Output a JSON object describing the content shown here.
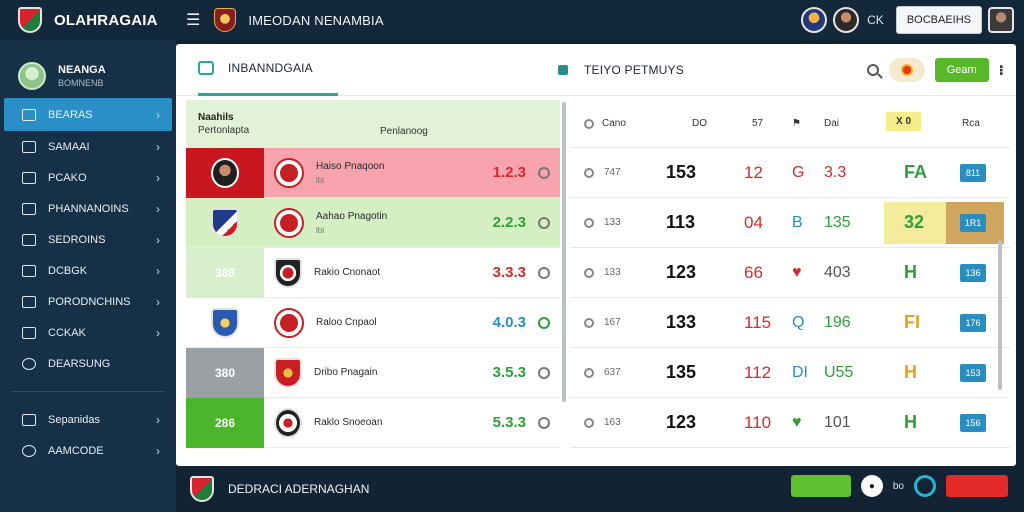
{
  "app": {
    "title": "OLAHRAGAIA",
    "header_title": "IMEODAN NENAMBIA",
    "header_ck": "CK",
    "header_button": "BOCBAEIHS"
  },
  "sidebar": {
    "profile_name": "NEANGA",
    "profile_sub": "BOMNENB",
    "items": [
      {
        "label": "BEARAS",
        "active": true,
        "chevron": "›"
      },
      {
        "label": "SAMAAI",
        "active": false,
        "chevron": "›"
      },
      {
        "label": "PCAKO",
        "active": false,
        "chevron": "›"
      },
      {
        "label": "PHANNANOINS",
        "active": false,
        "chevron": "›"
      },
      {
        "label": "SEDROINS",
        "active": false,
        "chevron": "›"
      },
      {
        "label": "DCBGK",
        "active": false,
        "chevron": "›"
      },
      {
        "label": "PORODNCHINS",
        "active": false,
        "chevron": "›"
      },
      {
        "label": "CCKAK",
        "active": false,
        "chevron": "›"
      },
      {
        "label": "DEARSUNG",
        "active": false,
        "chevron": ""
      }
    ],
    "bottom_items": [
      {
        "label": "Sepanidas",
        "chevron": "›"
      },
      {
        "label": "AAMCODE",
        "chevron": "›"
      }
    ]
  },
  "main": {
    "tab1": "INBANNDGAIA",
    "tab2": "TEIYO  PETMUYS",
    "action_button": "Geam",
    "more": "⁝"
  },
  "left_table": {
    "head_a": "Naahils",
    "head_b": "Pertonlapta",
    "head_c": "Penlanoog",
    "rows": [
      {
        "name": "Haiso Pnaqoon",
        "sub": "lbl",
        "score": "1.2.3",
        "score_color": "#d42a2a",
        "tag": ""
      },
      {
        "name": "Aahao Pnagotin",
        "sub": "lbl",
        "score": "2.2.3",
        "score_color": "#2f9e3a",
        "tag": ""
      },
      {
        "name": "Rakio Cnonaot",
        "sub": "",
        "score": "3.3.3",
        "score_color": "#d42a2a",
        "tag": "386"
      },
      {
        "name": "Raloo Cnpaol",
        "sub": "",
        "score": "4.0.3",
        "score_color": "#2a8dbf",
        "tag": ""
      },
      {
        "name": "Dribo Pnagain",
        "sub": "",
        "score": "3.5.3",
        "score_color": "#2f9e3a",
        "tag": "380"
      },
      {
        "name": "Raklo Snoeoan",
        "sub": "",
        "score": "5.3.3",
        "score_color": "#2f9e3a",
        "tag": "286"
      }
    ]
  },
  "right_table": {
    "headers": {
      "a": "Cano",
      "b": "DO",
      "c": "57",
      "d": "Dai",
      "e": "X 0",
      "f": "Rca"
    },
    "rows": [
      {
        "small": "747",
        "a": "153",
        "b": "12",
        "c": "G",
        "c_color": "#d42a2a",
        "d": "3.3",
        "d_color": "#d42a2a",
        "e": "FA",
        "e_color": "#2f9e3a",
        "f": "811"
      },
      {
        "small": "133",
        "a": "113",
        "b": "04",
        "c": "B",
        "c_color": "#2a8dbf",
        "d": "135",
        "d_color": "#2f9e3a",
        "e": "32",
        "e_color": "#2f9e3a",
        "f": "1R1"
      },
      {
        "small": "133",
        "a": "123",
        "b": "66",
        "c": "♥",
        "c_color": "#d42a2a",
        "d": "403",
        "d_color": "#555555",
        "e": "H",
        "e_color": "#2f9e3a",
        "f": "136"
      },
      {
        "small": "167",
        "a": "133",
        "b": "115",
        "c": "Q",
        "c_color": "#2a8dbf",
        "d": "196",
        "d_color": "#2f9e3a",
        "e": "FI",
        "e_color": "#e0a21f",
        "f": "176"
      },
      {
        "small": "637",
        "a": "135",
        "b": "112",
        "c": "DI",
        "c_color": "#2a8dbf",
        "d": "U55",
        "d_color": "#2f9e3a",
        "e": "H",
        "e_color": "#e0a21f",
        "f": "153"
      },
      {
        "small": "163",
        "a": "123",
        "b": "110",
        "c": "♥",
        "c_color": "#2f9e3a",
        "d": "101",
        "d_color": "#555555",
        "e": "H",
        "e_color": "#2f9e3a",
        "f": "156"
      }
    ]
  },
  "bottom": {
    "title": "DEDRACI ADERNAGHAN",
    "green_btn": "",
    "red_btn": "",
    "text": "bo"
  },
  "colors": {
    "accent": "#2a8fc6",
    "green": "#58b82a",
    "red": "#d42a2a",
    "sidebar": "#163047"
  }
}
